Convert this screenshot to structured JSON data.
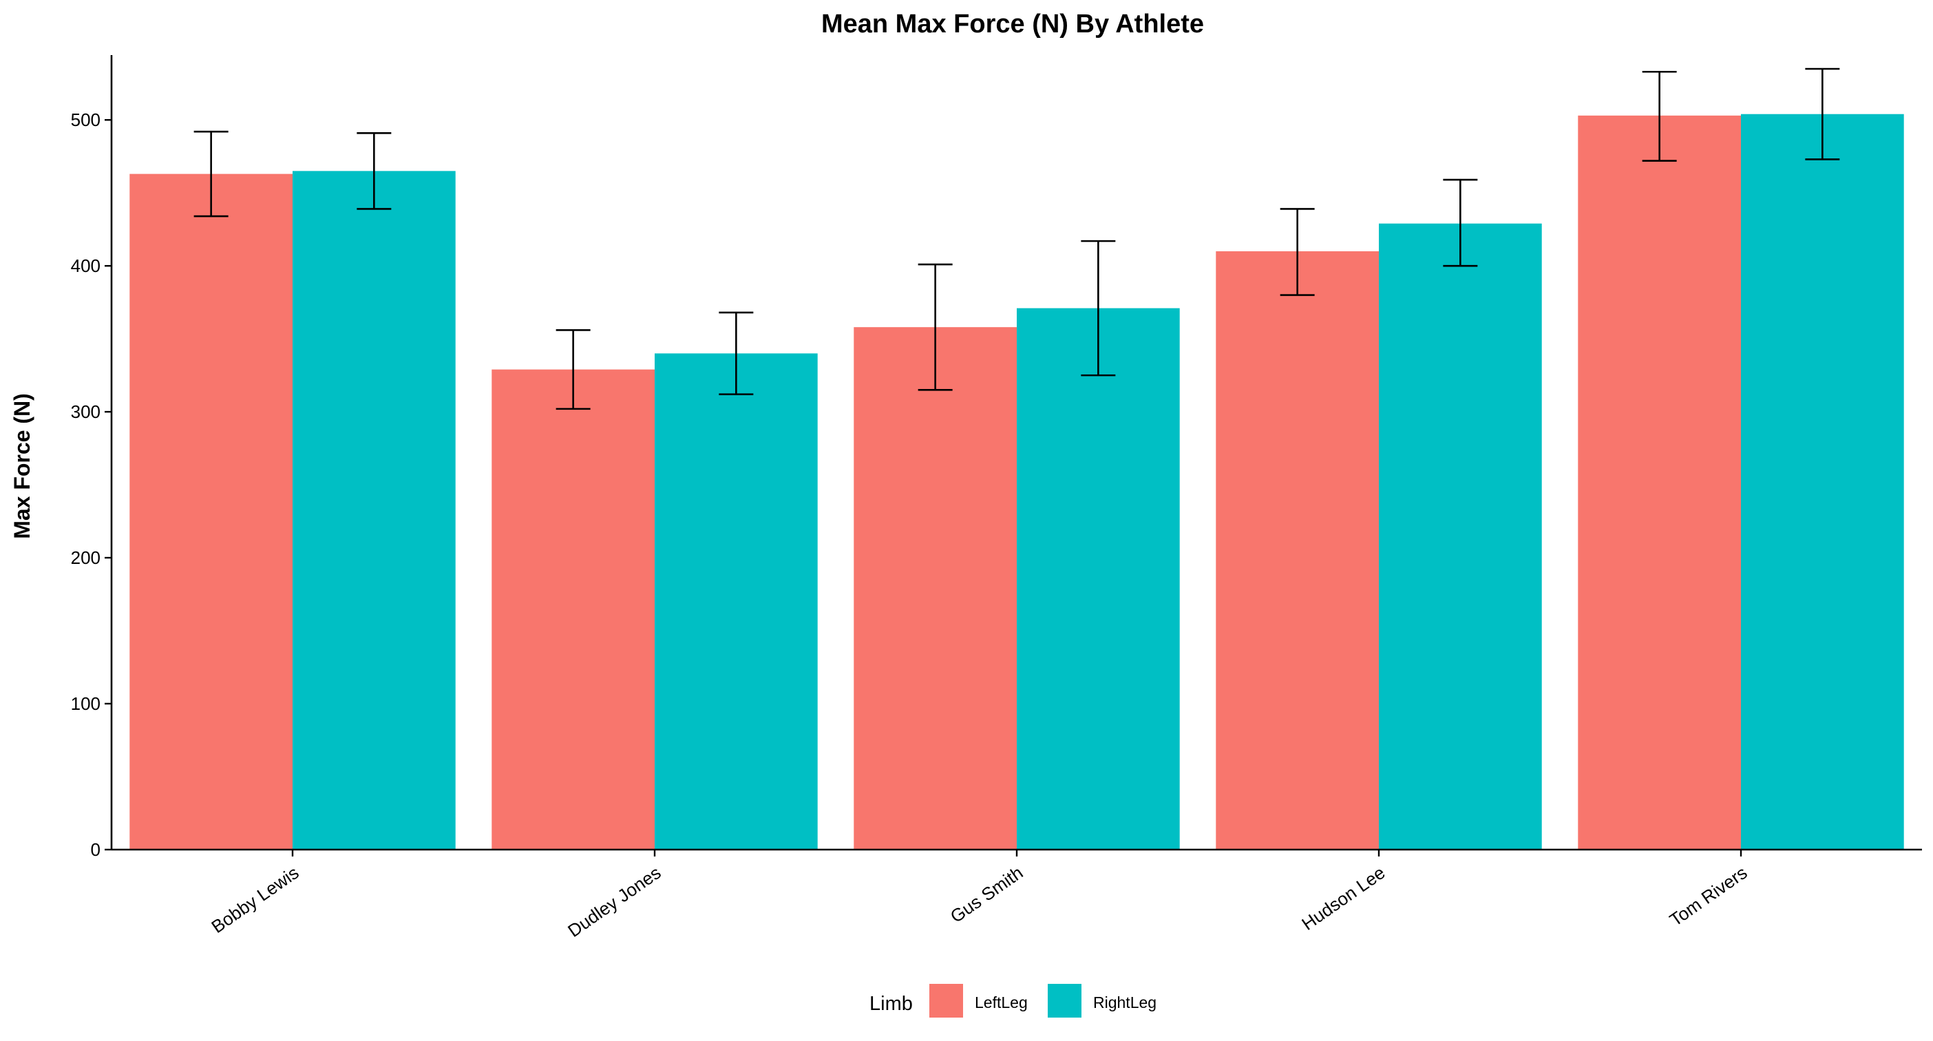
{
  "chart_data": {
    "type": "bar",
    "title": "Mean Max Force (N) By Athlete",
    "xlabel": "",
    "ylabel": "Max Force (N)",
    "categories": [
      "Bobby Lewis",
      "Dudley Jones",
      "Gus Smith",
      "Hudson Lee",
      "Tom Rivers"
    ],
    "series": [
      {
        "name": "LeftLeg",
        "color": "#F8766D",
        "values": [
          463,
          329,
          358,
          410,
          503
        ],
        "error_low": [
          434,
          302,
          315,
          380,
          472
        ],
        "error_high": [
          492,
          356,
          401,
          439,
          533
        ]
      },
      {
        "name": "RightLeg",
        "color": "#00BFC4",
        "values": [
          465,
          340,
          371,
          429,
          504
        ],
        "error_low": [
          439,
          312,
          325,
          400,
          473
        ],
        "error_high": [
          491,
          368,
          417,
          459,
          535
        ]
      }
    ],
    "ylim": [
      0,
      535
    ],
    "yticks": [
      "0",
      "100",
      "200",
      "300",
      "400",
      "500"
    ],
    "grid": false,
    "legend": {
      "title": "Limb",
      "position": "bottom",
      "entries": [
        "LeftLeg",
        "RightLeg"
      ]
    }
  }
}
